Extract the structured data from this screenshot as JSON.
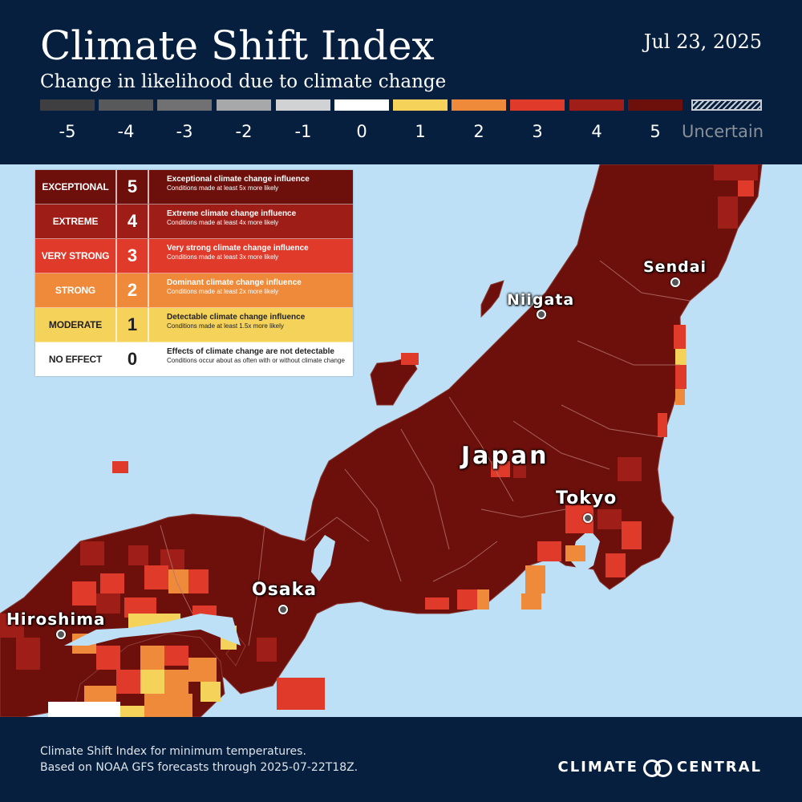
{
  "header": {
    "title": "Climate Shift Index",
    "subtitle": "Change in likelihood due to climate change",
    "date": "Jul 23, 2025"
  },
  "scale": {
    "items": [
      {
        "label": "-5",
        "color": "#3f3f41"
      },
      {
        "label": "-4",
        "color": "#58595b"
      },
      {
        "label": "-3",
        "color": "#717173"
      },
      {
        "label": "-2",
        "color": "#a7a8aa"
      },
      {
        "label": "-1",
        "color": "#d1d2d3"
      },
      {
        "label": "0",
        "color": "#ffffff"
      },
      {
        "label": "1",
        "color": "#f5d25a"
      },
      {
        "label": "2",
        "color": "#ee8a3a"
      },
      {
        "label": "3",
        "color": "#e03a2a"
      },
      {
        "label": "4",
        "color": "#a01e18"
      },
      {
        "label": "5",
        "color": "#6d100c"
      }
    ],
    "uncertain_label": "Uncertain"
  },
  "legend": {
    "rows": [
      {
        "category": "EXCEPTIONAL",
        "level": "5",
        "heading": "Exceptional climate change influence",
        "sub": "Conditions made at least 5x more likely",
        "bg": "#6d100c",
        "fg": "#ffffff"
      },
      {
        "category": "EXTREME",
        "level": "4",
        "heading": "Extreme climate change influence",
        "sub": "Conditions made at least 4x more likely",
        "bg": "#9e1d17",
        "fg": "#ffffff"
      },
      {
        "category": "VERY STRONG",
        "level": "3",
        "heading": "Very strong climate change influence",
        "sub": "Conditions made at least 3x more likely",
        "bg": "#e03a2a",
        "fg": "#ffffff"
      },
      {
        "category": "STRONG",
        "level": "2",
        "heading": "Dominant climate change influence",
        "sub": "Conditions made at least  2x more likely",
        "bg": "#ee8a3a",
        "fg": "#ffffff"
      },
      {
        "category": "MODERATE",
        "level": "1",
        "heading": "Detectable climate change influence",
        "sub": "Conditions made at least 1.5x more likely",
        "bg": "#f5d25a",
        "fg": "#222222"
      },
      {
        "category": "NO EFFECT",
        "level": "0",
        "heading": "Effects of climate change are not detectable",
        "sub": "Conditions occur about as often with or without climate change",
        "bg": "#ffffff",
        "fg": "#222222"
      }
    ]
  },
  "map": {
    "ocean_color": "#bee0f7",
    "cities": [
      {
        "name": "Sendai"
      },
      {
        "name": "Niigata"
      },
      {
        "name": "Japan"
      },
      {
        "name": "Tokyo"
      },
      {
        "name": "Osaka"
      },
      {
        "name": "Hiroshima"
      }
    ]
  },
  "footer": {
    "line1": "Climate Shift Index for minimum temperatures.",
    "line2": "Based on NOAA GFS forecasts through 2025-07-22T18Z.",
    "brand_left": "CLIMATE",
    "brand_right": "CENTRAL"
  }
}
